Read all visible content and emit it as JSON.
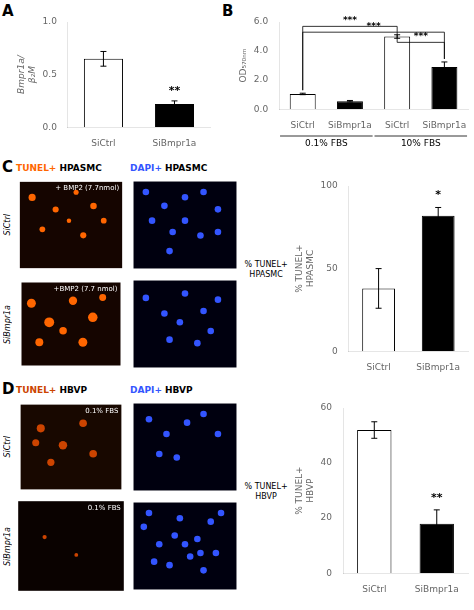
{
  "chart_data": [
    {
      "type": "bar",
      "title": "A",
      "categories": [
        "SiCtrl",
        "SiBmpr1a"
      ],
      "values": [
        0.65,
        0.22
      ],
      "errors": [
        0.07,
        0.03
      ],
      "colors": [
        "white",
        "black"
      ],
      "ylabel": "Bmpr1a/\nβ₂M",
      "ylim": [
        0,
        1.0
      ],
      "yticks": [
        {
          "value": 0,
          "label": "0.0"
        },
        0.5,
        {
          "value": 1,
          "label": "1.0"
        }
      ],
      "significance": "**",
      "grid": false
    },
    {
      "type": "bar",
      "title": "B",
      "categories": [
        "SiCtrl",
        "SiBmpr1a",
        "SiCtrl",
        "SiBmpr1a"
      ],
      "values": [
        1.05,
        0.55,
        5.0,
        2.9
      ],
      "errors": [
        0.05,
        0.05,
        0.12,
        0.35
      ],
      "colors": [
        "white",
        "black",
        "white",
        "black"
      ],
      "ylabel": "OD₅₇₀ₙₘ",
      "ylim": [
        0,
        6.0
      ],
      "yticks": [
        {
          "value": 0,
          "label": "0.0"
        },
        {
          "value": 2,
          "label": "2.0"
        },
        {
          "value": 4,
          "label": "4.0"
        },
        {
          "value": 6,
          "label": "6.0"
        }
      ],
      "group_labels": [
        "0.1% FBS",
        "10% FBS"
      ],
      "sig_pairs": [
        {
          "x1": 0,
          "x2": 2,
          "y": 5.7,
          "label": "***"
        },
        {
          "x1": 0,
          "x2": 3,
          "y": 5.3,
          "label": "***"
        },
        {
          "x1": 2,
          "x2": 3,
          "y": 4.6,
          "label": "***"
        }
      ],
      "grid": false
    },
    {
      "type": "scatter",
      "title": "TUNEL+ HPASMC",
      "ylabel": "SiCtrl",
      "annotations": [
        "+ BMP2 (7.7nmol)"
      ],
      "x": [
        0.12,
        0.35,
        0.55,
        0.72,
        0.22,
        0.62,
        0.82,
        0.48
      ],
      "y": [
        0.82,
        0.68,
        0.88,
        0.72,
        0.45,
        0.38,
        0.55,
        0.55
      ],
      "sizes": [
        0.035,
        0.03,
        0.025,
        0.032,
        0.028,
        0.03,
        0.028,
        0.022
      ],
      "color": "#FF6600",
      "background_color": "#150500",
      "xlim": [
        0,
        1
      ],
      "ylim": [
        0,
        1
      ],
      "tick_labels": false
    },
    {
      "type": "scatter",
      "title": "DAPI+ HPASMC",
      "x": [
        0.12,
        0.3,
        0.5,
        0.68,
        0.82,
        0.38,
        0.65,
        0.18,
        0.5,
        0.82,
        0.35
      ],
      "y": [
        0.88,
        0.72,
        0.82,
        0.88,
        0.68,
        0.42,
        0.38,
        0.55,
        0.55,
        0.42,
        0.2
      ],
      "sizes": [
        0.032,
        0.032,
        0.032,
        0.032,
        0.032,
        0.032,
        0.032,
        0.032,
        0.032,
        0.032,
        0.032
      ],
      "color": "#3355FF",
      "background_color": "#00000f",
      "xlim": [
        0,
        1
      ],
      "ylim": [
        0,
        1
      ],
      "tick_labels": false
    },
    {
      "type": "scatter",
      "ylabel": "SiBmpr1a",
      "annotations": [
        "+BMP2 (7.7 nmol)"
      ],
      "x": [
        0.1,
        0.28,
        0.52,
        0.72,
        0.18,
        0.62,
        0.82,
        0.42
      ],
      "y": [
        0.75,
        0.52,
        0.78,
        0.58,
        0.28,
        0.28,
        0.82,
        0.42
      ],
      "sizes": [
        0.045,
        0.05,
        0.042,
        0.048,
        0.04,
        0.045,
        0.035,
        0.038
      ],
      "color": "#FF6600",
      "background_color": "#150500",
      "xlim": [
        0,
        1
      ],
      "ylim": [
        0,
        1
      ],
      "tick_labels": false
    },
    {
      "type": "scatter",
      "x": [
        0.12,
        0.3,
        0.5,
        0.68,
        0.82,
        0.35,
        0.62,
        0.45,
        0.75
      ],
      "y": [
        0.8,
        0.62,
        0.85,
        0.65,
        0.78,
        0.32,
        0.28,
        0.52,
        0.42
      ],
      "sizes": [
        0.032,
        0.032,
        0.032,
        0.032,
        0.032,
        0.032,
        0.032,
        0.032,
        0.032
      ],
      "color": "#3355FF",
      "background_color": "#00000f",
      "xlim": [
        0,
        1
      ],
      "ylim": [
        0,
        1
      ],
      "tick_labels": false
    },
    {
      "type": "bar",
      "title": "C",
      "categories": [
        "SiCtrl",
        "SiBmpr1a"
      ],
      "values": [
        38,
        82
      ],
      "errors": [
        12,
        5
      ],
      "colors": [
        "white",
        "black"
      ],
      "ylabel": "% TUNEL+\nHPASMC",
      "ylim": [
        0,
        100
      ],
      "yticks": [
        0,
        50,
        100
      ],
      "significance": "*",
      "annotations": [
        "% TUNEL+\nHPASMC"
      ],
      "grid": false
    },
    {
      "type": "scatter",
      "title": "TUNEL+ HBVP",
      "ylabel": "SiCtrl",
      "annotations": [
        "0.1% FBS"
      ],
      "x": [
        0.2,
        0.42,
        0.62,
        0.3,
        0.72,
        0.15
      ],
      "y": [
        0.72,
        0.52,
        0.78,
        0.32,
        0.42,
        0.55
      ],
      "sizes": [
        0.04,
        0.042,
        0.038,
        0.036,
        0.038,
        0.035
      ],
      "color": "#CC4400",
      "background_color": "#180800",
      "xlim": [
        0,
        1
      ],
      "ylim": [
        0,
        1
      ],
      "tick_labels": false
    },
    {
      "type": "scatter",
      "title": "DAPI+ HBVP",
      "x": [
        0.15,
        0.32,
        0.52,
        0.68,
        0.82,
        0.42,
        0.25
      ],
      "y": [
        0.82,
        0.65,
        0.78,
        0.88,
        0.65,
        0.38,
        0.42
      ],
      "sizes": [
        0.032,
        0.032,
        0.032,
        0.032,
        0.032,
        0.032,
        0.032
      ],
      "color": "#3355FF",
      "background_color": "#00000f",
      "xlim": [
        0,
        1
      ],
      "ylim": [
        0,
        1
      ],
      "tick_labels": false
    },
    {
      "type": "scatter",
      "ylabel": "SiBmpr1a",
      "annotations": [
        "0.1% FBS"
      ],
      "x": [
        0.25,
        0.55
      ],
      "y": [
        0.6,
        0.4
      ],
      "sizes": [
        0.02,
        0.018
      ],
      "color": "#CC4400",
      "background_color": "#0a0200",
      "xlim": [
        0,
        1
      ],
      "ylim": [
        0,
        1
      ],
      "tick_labels": false
    },
    {
      "type": "scatter",
      "x": [
        0.1,
        0.25,
        0.45,
        0.62,
        0.75,
        0.35,
        0.55,
        0.8,
        0.2,
        0.68,
        0.5,
        0.85,
        0.15,
        0.4,
        0.65
      ],
      "y": [
        0.72,
        0.52,
        0.82,
        0.58,
        0.78,
        0.28,
        0.38,
        0.42,
        0.32,
        0.22,
        0.52,
        0.88,
        0.88,
        0.62,
        0.42
      ],
      "sizes": [
        0.032,
        0.032,
        0.032,
        0.032,
        0.032,
        0.032,
        0.032,
        0.032,
        0.032,
        0.032,
        0.032,
        0.032,
        0.032,
        0.032,
        0.032
      ],
      "color": "#3355FF",
      "background_color": "#00000f",
      "xlim": [
        0,
        1
      ],
      "ylim": [
        0,
        1
      ],
      "tick_labels": false
    },
    {
      "type": "bar",
      "title": "D",
      "categories": [
        "SiCtrl",
        "SiBmpr1a"
      ],
      "values": [
        52,
        18
      ],
      "errors": [
        3,
        5
      ],
      "colors": [
        "white",
        "black"
      ],
      "ylabel": "% TUNEL+\nHBVP",
      "ylim": [
        0,
        60
      ],
      "yticks": [
        0,
        20,
        40,
        60
      ],
      "significance": "**",
      "annotations": [
        "% TUNEL+\nHBVP"
      ],
      "grid": false
    }
  ]
}
